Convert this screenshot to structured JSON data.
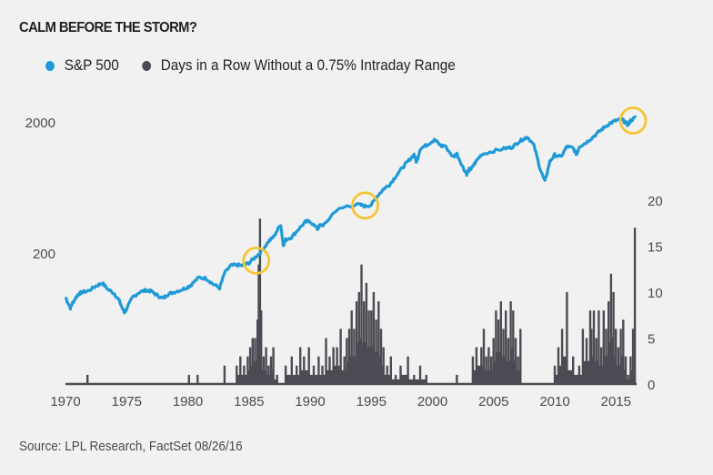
{
  "title": "CALM BEFORE THE STORM?",
  "legend": [
    {
      "label": "S&P 500",
      "color": "#1e9ad6"
    },
    {
      "label": "Days in a Row Without a 0.75% Intraday Range",
      "color": "#4b4c53"
    }
  ],
  "source": "Source: LPL Research, FactSet   08/26/16",
  "chart_data": {
    "type": "line+bar",
    "title": "CALM BEFORE THE STORM?",
    "x_ticks": [
      "1970",
      "1975",
      "1980",
      "1985",
      "1990",
      "1995",
      "2000",
      "2005",
      "2010",
      "2015"
    ],
    "xlim": [
      1970,
      2016.7
    ],
    "left_axis": {
      "scale": "log",
      "ticks": [
        "200",
        "2000"
      ],
      "tick_values": [
        200,
        2000
      ],
      "ylim": [
        60,
        3200
      ]
    },
    "right_axis": {
      "scale": "linear",
      "ticks": [
        "0",
        "5",
        "10",
        "15",
        "20"
      ],
      "tick_values": [
        0,
        5,
        10,
        15,
        20
      ],
      "ylim": [
        0,
        20
      ]
    },
    "series": [
      {
        "name": "S&P 500",
        "type": "line",
        "axis": "left",
        "color": "#1e9ad6",
        "x": [
          1970.0,
          1970.4,
          1970.6,
          1971.0,
          1971.3,
          1971.9,
          1972.5,
          1973.0,
          1973.5,
          1974.0,
          1974.4,
          1974.8,
          1975.0,
          1975.5,
          1976.0,
          1976.6,
          1977.0,
          1977.5,
          1978.0,
          1978.3,
          1978.8,
          1979.5,
          1980.0,
          1980.3,
          1980.9,
          1981.5,
          1982.0,
          1982.6,
          1983.0,
          1983.5,
          1984.0,
          1984.5,
          1985.0,
          1985.5,
          1986.0,
          1986.6,
          1987.0,
          1987.6,
          1987.8,
          1988.0,
          1988.5,
          1989.0,
          1989.6,
          1990.0,
          1990.6,
          1990.8,
          1991.2,
          1992.0,
          1993.0,
          1994.0,
          1994.5,
          1995.0,
          1995.5,
          1996.0,
          1996.5,
          1997.0,
          1997.6,
          1998.0,
          1998.5,
          1998.7,
          1999.0,
          1999.5,
          2000.0,
          2000.2,
          2000.7,
          2001.0,
          2001.7,
          2002.0,
          2002.5,
          2002.8,
          2003.0,
          2003.2,
          2003.5,
          2004.0,
          2005.0,
          2006.0,
          2006.5,
          2007.0,
          2007.5,
          2007.8,
          2008.3,
          2008.8,
          2009.2,
          2009.6,
          2010.0,
          2010.5,
          2011.0,
          2011.5,
          2011.8,
          2012.0,
          2012.5,
          2013.0,
          2013.5,
          2014.0,
          2014.5,
          2015.0,
          2015.5,
          2015.7,
          2016.0,
          2016.2,
          2016.66
        ],
        "values": [
          92,
          76,
          84,
          96,
          100,
          103,
          112,
          118,
          105,
          98,
          86,
          70,
          75,
          92,
          100,
          104,
          102,
          95,
          90,
          96,
          100,
          105,
          110,
          115,
          130,
          128,
          117,
          108,
          140,
          160,
          162,
          160,
          168,
          185,
          205,
          245,
          265,
          330,
          230,
          252,
          265,
          300,
          345,
          350,
          305,
          325,
          330,
          415,
          455,
          468,
          455,
          465,
          545,
          615,
          665,
          770,
          905,
          1000,
          1130,
          980,
          1250,
          1330,
          1430,
          1460,
          1310,
          1320,
          1080,
          1140,
          900,
          800,
          865,
          880,
          980,
          1130,
          1200,
          1260,
          1280,
          1400,
          1500,
          1530,
          1320,
          880,
          700,
          1000,
          1120,
          1080,
          1300,
          1260,
          1130,
          1300,
          1380,
          1500,
          1650,
          1800,
          1950,
          2050,
          2100,
          2000,
          1900,
          2050,
          2180
        ]
      },
      {
        "name": "Days in a Row Without a 0.75% Intraday Range",
        "type": "bar",
        "axis": "right",
        "color": "#4b4c53",
        "x": [
          1971.8,
          1980.1,
          1980.8,
          1983.0,
          1984.0,
          1984.3,
          1984.6,
          1984.9,
          1985.1,
          1985.3,
          1985.5,
          1985.7,
          1985.8,
          1985.9,
          1986.0,
          1986.2,
          1986.4,
          1986.6,
          1986.8,
          1987.0,
          1987.3,
          1987.6,
          1988.0,
          1988.5,
          1988.9,
          1989.2,
          1989.5,
          1989.9,
          1990.3,
          1990.7,
          1991.0,
          1991.3,
          1991.6,
          1991.9,
          1992.2,
          1992.5,
          1992.8,
          1993.0,
          1993.2,
          1993.4,
          1993.6,
          1993.8,
          1994.0,
          1994.2,
          1994.4,
          1994.6,
          1994.8,
          1995.0,
          1995.2,
          1995.4,
          1995.6,
          1995.8,
          1996.0,
          1996.3,
          1996.6,
          1997.0,
          1997.4,
          1998.0,
          1998.5,
          1999.0,
          1999.5,
          2000.0,
          2001.0,
          2002.0,
          2003.3,
          2003.6,
          2004.0,
          2004.2,
          2004.4,
          2004.6,
          2004.8,
          2005.0,
          2005.2,
          2005.4,
          2005.6,
          2005.8,
          2006.0,
          2006.2,
          2006.4,
          2006.6,
          2006.8,
          2007.0,
          2007.2,
          2008.0,
          2009.5,
          2010.0,
          2010.3,
          2010.6,
          2011.0,
          2011.5,
          2012.0,
          2012.3,
          2012.6,
          2012.9,
          2013.0,
          2013.2,
          2013.4,
          2013.6,
          2013.8,
          2014.0,
          2014.2,
          2014.4,
          2014.6,
          2014.8,
          2015.0,
          2015.2,
          2015.4,
          2015.6,
          2015.8,
          2016.0,
          2016.2,
          2016.4,
          2016.55
        ],
        "values": [
          1,
          1,
          1,
          2,
          2,
          3,
          2,
          3,
          4,
          5,
          5,
          7,
          13,
          18,
          8,
          3,
          4,
          2,
          3,
          4,
          1,
          0,
          2,
          3,
          2,
          4,
          3,
          4,
          2,
          3,
          2,
          5,
          3,
          4,
          4,
          6,
          3,
          5,
          6,
          8,
          6,
          9,
          10,
          13,
          9,
          11,
          8,
          8,
          10,
          7,
          9,
          6,
          4,
          2,
          3,
          1,
          2,
          3,
          1,
          2,
          1,
          0,
          0,
          1,
          3,
          4,
          4,
          6,
          3,
          4,
          3,
          5,
          8,
          7,
          9,
          6,
          8,
          5,
          9,
          8,
          5,
          3,
          6,
          0,
          0,
          2,
          4,
          6,
          10,
          3,
          2,
          6,
          5,
          8,
          6,
          8,
          5,
          8,
          4,
          8,
          6,
          9,
          12,
          10,
          6,
          4,
          6,
          7,
          3,
          1,
          3,
          6,
          17
        ]
      }
    ],
    "annotations": [
      {
        "type": "circle",
        "color": "#f5c531",
        "x": 1985.6,
        "y_left": 175
      },
      {
        "type": "circle",
        "color": "#f5c531",
        "x": 1994.5,
        "y_left": 460
      },
      {
        "type": "circle",
        "color": "#f5c531",
        "x": 2016.4,
        "y_left": 2050
      }
    ]
  }
}
